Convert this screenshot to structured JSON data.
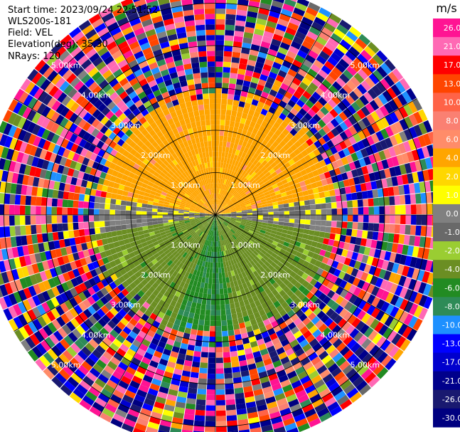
{
  "header": {
    "start_time": "Start time: 2023/09/24 22:51:52",
    "instrument": "WLS200s-181",
    "field": "Field: VEL",
    "elevation": "Elevation(deg): 35.30",
    "nrays": "NRays: 120"
  },
  "chart_data": {
    "type": "heatmap",
    "title": "",
    "projection": "polar-ppi",
    "field": "VEL",
    "units": "m/s",
    "nrays": 120,
    "elevation_deg": 35.3,
    "range_rings_km": [
      1.0,
      2.0,
      3.0,
      4.0,
      5.0
    ],
    "ring_labels": [
      "1.00km",
      "2.00km",
      "3.00km",
      "4.00km",
      "5.00km"
    ],
    "max_range_km": 5.5,
    "spokes_deg": [
      0,
      30,
      60,
      90,
      120,
      150,
      180,
      210,
      240,
      270,
      300,
      330
    ],
    "valid_range_km": 2.9,
    "colorbar": {
      "label": "m/s",
      "vmin": -30.0,
      "vmax": 30.0,
      "ticks": [
        "26.0",
        "21.0",
        "17.0",
        "13.0",
        "10.0",
        "8.0",
        "6.0",
        "4.0",
        "2.0",
        "1.0",
        "0.0",
        "-1.0",
        "-2.0",
        "-4.0",
        "-6.0",
        "-8.0",
        "-10.0",
        "-13.0",
        "-17.0",
        "-21.0",
        "-26.0",
        "-30.0"
      ],
      "bins": [
        {
          "min": 26.0,
          "max": 30.0,
          "color": "#ff1493"
        },
        {
          "min": 21.0,
          "max": 26.0,
          "color": "#ff69b4"
        },
        {
          "min": 17.0,
          "max": 21.0,
          "color": "#ff0000"
        },
        {
          "min": 13.0,
          "max": 17.0,
          "color": "#ff4500"
        },
        {
          "min": 10.0,
          "max": 13.0,
          "color": "#ff6347"
        },
        {
          "min": 8.0,
          "max": 10.0,
          "color": "#fa8072"
        },
        {
          "min": 6.0,
          "max": 8.0,
          "color": "#ff8c69"
        },
        {
          "min": 4.0,
          "max": 6.0,
          "color": "#ffa500"
        },
        {
          "min": 2.0,
          "max": 4.0,
          "color": "#ffd700"
        },
        {
          "min": 1.0,
          "max": 2.0,
          "color": "#ffff00"
        },
        {
          "min": 0.0,
          "max": 1.0,
          "color": "#808080"
        },
        {
          "min": -1.0,
          "max": 0.0,
          "color": "#696969"
        },
        {
          "min": -2.0,
          "max": -1.0,
          "color": "#9acd32"
        },
        {
          "min": -4.0,
          "max": -2.0,
          "color": "#6b8e23"
        },
        {
          "min": -6.0,
          "max": -4.0,
          "color": "#228b22"
        },
        {
          "min": -8.0,
          "max": -6.0,
          "color": "#2e8b57"
        },
        {
          "min": -10.0,
          "max": -8.0,
          "color": "#1e90ff"
        },
        {
          "min": -13.0,
          "max": -10.0,
          "color": "#0000ff"
        },
        {
          "min": -17.0,
          "max": -13.0,
          "color": "#0000cd"
        },
        {
          "min": -21.0,
          "max": -17.0,
          "color": "#00008b"
        },
        {
          "min": -26.0,
          "max": -21.0,
          "color": "#191970"
        },
        {
          "min": -30.0,
          "max": -26.0,
          "color": "#000080"
        }
      ]
    },
    "velocity_sectors": [
      {
        "from_deg": 280,
        "to_deg": 80,
        "velocity_ms": 5.0
      },
      {
        "from_deg": 80,
        "to_deg": 100,
        "velocity_ms": 0.3
      },
      {
        "from_deg": 100,
        "to_deg": 170,
        "velocity_ms": -3.0
      },
      {
        "from_deg": 170,
        "to_deg": 200,
        "velocity_ms": -5.5
      },
      {
        "from_deg": 200,
        "to_deg": 260,
        "velocity_ms": -3.0
      },
      {
        "from_deg": 260,
        "to_deg": 280,
        "velocity_ms": 0.3
      }
    ]
  }
}
